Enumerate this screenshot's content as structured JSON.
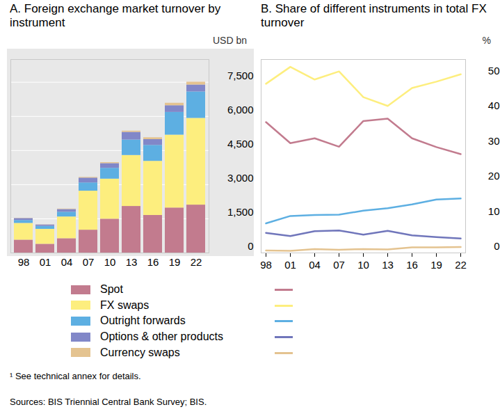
{
  "chart_data": [
    {
      "type": "bar",
      "stacked": true,
      "grid": true,
      "legend": "bottom",
      "title": "A. Foreign exchange market turnover by instrument",
      "ylabel": "USD bn",
      "categories": [
        "98",
        "01",
        "04",
        "07",
        "10",
        "13",
        "16",
        "19",
        "22"
      ],
      "ylim": [
        0,
        8500
      ],
      "yticks": [
        0,
        {
          "value": 1500,
          "label": "1,500"
        },
        {
          "value": 3000,
          "label": "3,000"
        },
        {
          "value": 4500,
          "label": "4,500"
        },
        {
          "value": 6000,
          "label": "6,000"
        },
        {
          "value": 7500,
          "label": "7,500"
        }
      ],
      "series": [
        {
          "name": "Spot",
          "color": "#c27b8e",
          "values": [
            568,
            386,
            631,
            1005,
            1489,
            2047,
            1652,
            1979,
            2107
          ]
        },
        {
          "name": "FX swaps",
          "color": "#fdee7e",
          "values": [
            734,
            656,
            954,
            1714,
            1759,
            2240,
            2378,
            3202,
            3810
          ]
        },
        {
          "name": "Outright forwards",
          "color": "#5dafe2",
          "values": [
            128,
            130,
            209,
            362,
            475,
            679,
            700,
            999,
            1163
          ]
        },
        {
          "name": "Options & other products",
          "color": "#8187c8",
          "values": [
            87,
            60,
            119,
            212,
            207,
            337,
            254,
            294,
            304
          ]
        },
        {
          "name": "Currency swaps",
          "color": "#e4c390",
          "values": [
            10,
            7,
            21,
            31,
            43,
            54,
            82,
            108,
            124
          ]
        }
      ]
    },
    {
      "type": "line",
      "grid": false,
      "legend": "bottom",
      "title": "B. Share of different instruments in total FX turnover",
      "ylabel": "%",
      "categories": [
        "98",
        "01",
        "04",
        "07",
        "10",
        "13",
        "16",
        "19",
        "22"
      ],
      "ylim": [
        0,
        55
      ],
      "yticks": [
        0,
        10,
        20,
        30,
        40,
        50
      ],
      "series": [
        {
          "name": "Spot",
          "color": "#c27b8e",
          "values": [
            37.2,
            31.2,
            32.6,
            30.2,
            37.5,
            38.2,
            32.6,
            30.1,
            28.1
          ]
        },
        {
          "name": "FX swaps",
          "color": "#fdee7e",
          "values": [
            48.1,
            52.9,
            49.3,
            51.6,
            44.3,
            41.8,
            46.9,
            48.7,
            50.8
          ]
        },
        {
          "name": "Outright forwards",
          "color": "#5dafe2",
          "values": [
            8.4,
            10.5,
            10.8,
            10.9,
            12.0,
            12.7,
            13.8,
            15.2,
            15.5
          ]
        },
        {
          "name": "Options & other products",
          "color": "#7076bb",
          "values": [
            5.7,
            4.8,
            6.2,
            6.4,
            5.2,
            6.3,
            5.0,
            4.5,
            4.1
          ]
        },
        {
          "name": "Currency swaps",
          "color": "#e4c390",
          "values": [
            0.7,
            0.6,
            1.1,
            0.9,
            1.1,
            1.0,
            1.6,
            1.6,
            1.7
          ]
        }
      ]
    }
  ],
  "footnote": "¹ See technical annex for details.",
  "source": "Sources: BIS Triennial Central Bank Survey; BIS."
}
